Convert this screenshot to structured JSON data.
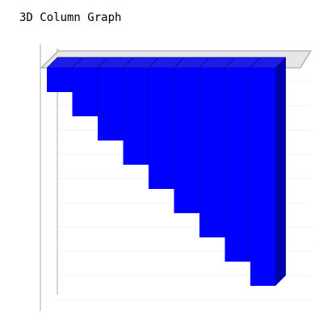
{
  "chart_data": {
    "type": "bar",
    "title": "3D Column Graph",
    "values": [
      -1,
      -2,
      -3,
      -4,
      -5,
      -6,
      -7,
      -8,
      -9
    ],
    "ylim": [
      -10,
      0
    ],
    "grid": true,
    "style": "3d-column",
    "colors": {
      "bar_front": "#0000ff",
      "bar_top": "#1c1ce6",
      "bar_side": "#0000aa",
      "floor_fill": "#e6e6e6",
      "floor_stroke": "#999999",
      "axis": "#aaaaaa",
      "grid": "#f0f0f0"
    }
  }
}
